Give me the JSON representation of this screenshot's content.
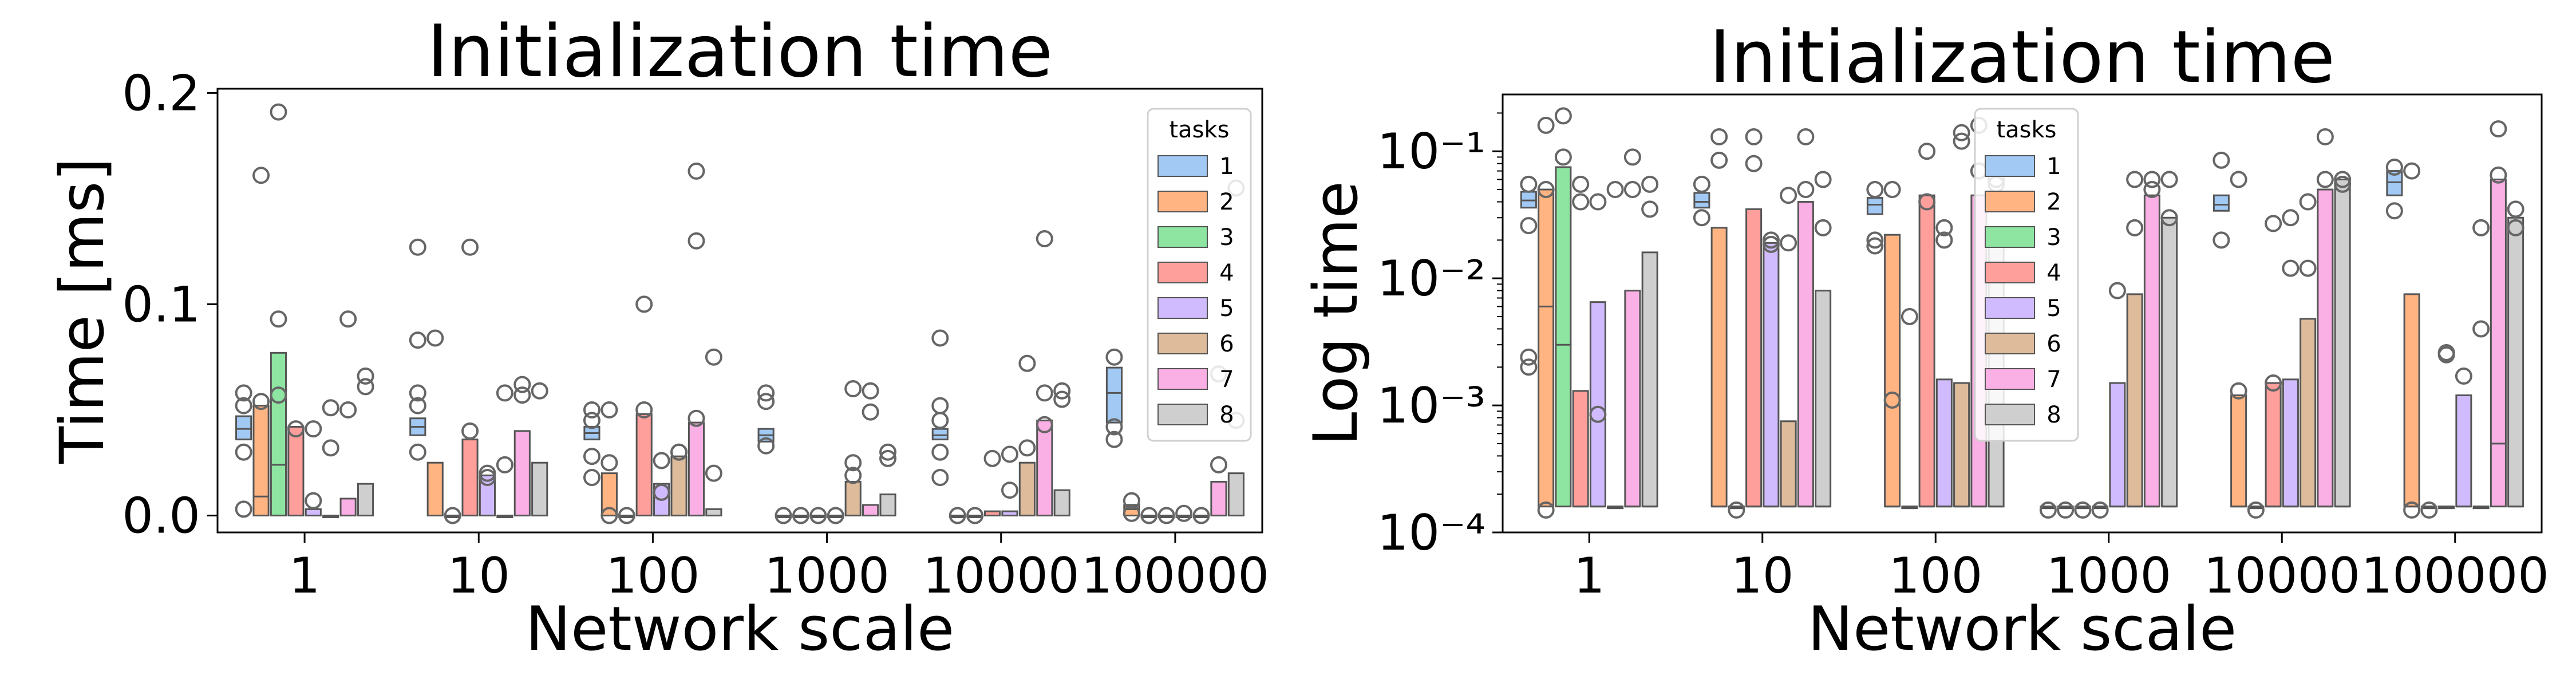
{
  "chart_data": [
    {
      "type": "boxen",
      "title": "Initialization time",
      "xlabel": "Network scale",
      "ylabel": "Time [ms]",
      "yscale": "linear",
      "ylim": [
        -0.008,
        0.202
      ],
      "yticks": [
        0.0,
        0.1,
        0.2
      ],
      "ytick_labels": [
        "0.0",
        "0.1",
        "0.2"
      ],
      "categories": [
        "1",
        "10",
        "100",
        "1000",
        "10000",
        "100000"
      ],
      "legend": {
        "title": "tasks",
        "placement": "top-right",
        "entries": [
          "1",
          "2",
          "3",
          "4",
          "5",
          "6",
          "7",
          "8"
        ]
      },
      "series": [
        {
          "name": "1",
          "color": "#a1c9f4",
          "boxes": [
            [
              0.036,
              0.047
            ],
            [
              0.038,
              0.046
            ],
            [
              0.036,
              0.042
            ],
            [
              0.035,
              0.041
            ],
            [
              0.036,
              0.041
            ],
            [
              0.044,
              0.07
            ]
          ],
          "medians": [
            0.041,
            0.042,
            0.039,
            0.038,
            0.038,
            0.058
          ],
          "fliers": [
            [
              0.058,
              0.052,
              0.03,
              0.003
            ],
            [
              0.058,
              0.052,
              0.083,
              0.127,
              0.03
            ],
            [
              0.05,
              0.045,
              0.028,
              0.018
            ],
            [
              0.058,
              0.054,
              0.033
            ],
            [
              0.052,
              0.045,
              0.018,
              0.03,
              0.084
            ],
            [
              0.075,
              0.042,
              0.036
            ]
          ]
        },
        {
          "name": "2",
          "color": "#ffb482",
          "boxes": [
            [
              0.0,
              0.052
            ],
            [
              0.0,
              0.025
            ],
            [
              0.0,
              0.02
            ],
            [
              0.0,
              0.0
            ],
            [
              0.0,
              0.0
            ],
            [
              0.0,
              0.005
            ]
          ],
          "medians": [
            0.009,
            0.0,
            0.0,
            0.0,
            0.0,
            0.003
          ],
          "fliers": [
            [
              0.161,
              0.054
            ],
            [
              0.084
            ],
            [
              0.05,
              0.025,
              0.0
            ],
            [
              0.0
            ],
            [
              0.0
            ],
            [
              0.007,
              0.001
            ]
          ]
        },
        {
          "name": "3",
          "color": "#8de5a1",
          "boxes": [
            [
              0.0,
              0.077
            ],
            [
              0.0,
              0.0
            ],
            [
              0.0,
              0.0
            ],
            [
              0.0,
              0.0
            ],
            [
              0.0,
              0.0
            ],
            [
              0.0,
              0.0
            ]
          ],
          "medians": [
            0.024,
            0.0,
            0.0,
            0.0,
            0.0,
            0.0
          ],
          "fliers": [
            [
              0.191,
              0.093,
              0.057
            ],
            [
              0.0
            ],
            [
              0.0
            ],
            [
              0.0
            ],
            [
              0.0
            ],
            [
              0.0
            ]
          ]
        },
        {
          "name": "4",
          "color": "#ff9f9b",
          "boxes": [
            [
              0.0,
              0.042
            ],
            [
              0.0,
              0.036
            ],
            [
              0.0,
              0.048
            ],
            [
              0.0,
              0.0
            ],
            [
              0.0,
              0.002
            ],
            [
              0.0,
              0.0
            ]
          ],
          "medians": [
            0.0,
            0.0,
            0.0,
            0.0,
            0.0,
            0.0
          ],
          "fliers": [
            [
              0.041
            ],
            [
              0.127,
              0.04
            ],
            [
              0.1,
              0.05
            ],
            [
              0.0
            ],
            [
              0.027
            ],
            [
              0.0
            ]
          ]
        },
        {
          "name": "5",
          "color": "#d0bbff",
          "boxes": [
            [
              0.0,
              0.003
            ],
            [
              0.0,
              0.019
            ],
            [
              0.0,
              0.015
            ],
            [
              0.0,
              0.0
            ],
            [
              0.0,
              0.002
            ],
            [
              0.0,
              0.0
            ]
          ],
          "medians": [
            0.0,
            0.0,
            0.0,
            0.0,
            0.0,
            0.0
          ],
          "fliers": [
            [
              0.007,
              0.041
            ],
            [
              0.02,
              0.018
            ],
            [
              0.026,
              0.011
            ],
            [
              0.0
            ],
            [
              0.029,
              0.012
            ],
            [
              0.001
            ]
          ]
        },
        {
          "name": "6",
          "color": "#debb9b",
          "boxes": [
            [
              0.0,
              0.0
            ],
            [
              0.0,
              0.0
            ],
            [
              0.0,
              0.028
            ],
            [
              0.0,
              0.016
            ],
            [
              0.0,
              0.025
            ],
            [
              0.0,
              0.0
            ]
          ],
          "medians": [
            0.0,
            0.0,
            0.0,
            0.0,
            0.0,
            0.0
          ],
          "fliers": [
            [
              0.051,
              0.032
            ],
            [
              0.058,
              0.024
            ],
            [
              0.03,
              0.03
            ],
            [
              0.019,
              0.06,
              0.025
            ],
            [
              0.072,
              0.032
            ],
            [
              0.0
            ]
          ]
        },
        {
          "name": "7",
          "color": "#fab0e4",
          "boxes": [
            [
              0.0,
              0.008
            ],
            [
              0.0,
              0.04
            ],
            [
              0.0,
              0.044
            ],
            [
              0.0,
              0.005
            ],
            [
              0.0,
              0.045
            ],
            [
              0.0,
              0.016
            ]
          ],
          "medians": [
            0.0,
            0.0,
            0.0,
            0.0,
            0.0,
            0.0
          ],
          "fliers": [
            [
              0.05,
              0.093
            ],
            [
              0.062,
              0.057
            ],
            [
              0.163,
              0.13,
              0.046
            ],
            [
              0.059,
              0.049
            ],
            [
              0.131,
              0.058,
              0.043
            ],
            [
              0.067,
              0.024
            ]
          ]
        },
        {
          "name": "8",
          "color": "#cfcfcf",
          "boxes": [
            [
              0.0,
              0.015
            ],
            [
              0.0,
              0.025
            ],
            [
              0.0,
              0.003
            ],
            [
              0.0,
              0.01
            ],
            [
              0.0,
              0.012
            ],
            [
              0.0,
              0.02
            ]
          ],
          "medians": [
            0.0,
            0.0,
            0.0,
            0.0,
            0.0,
            0.0
          ],
          "fliers": [
            [
              0.066,
              0.061
            ],
            [
              0.059
            ],
            [
              0.075,
              0.02
            ],
            [
              0.03,
              0.027
            ],
            [
              0.059,
              0.055
            ],
            [
              0.155,
              0.045
            ]
          ]
        }
      ]
    },
    {
      "type": "boxen",
      "title": "Initialization time",
      "xlabel": "Network scale",
      "ylabel": "Log time",
      "yscale": "log",
      "ylim": [
        0.0001,
        0.28
      ],
      "yticks": [
        0.0001,
        0.001,
        0.01,
        0.1
      ],
      "ytick_labels": [
        "10⁻⁴",
        "10⁻³",
        "10⁻²",
        "10⁻¹"
      ],
      "categories": [
        "1",
        "10",
        "100",
        "1000",
        "10000",
        "100000"
      ],
      "legend": {
        "title": "tasks",
        "placement": "upper center",
        "entries": [
          "1",
          "2",
          "3",
          "4",
          "5",
          "6",
          "7",
          "8"
        ]
      },
      "series": [
        {
          "name": "1",
          "color": "#a1c9f4",
          "boxes": [
            [
              0.036,
              0.048
            ],
            [
              0.036,
              0.047
            ],
            [
              0.032,
              0.043
            ],
            [
              0.00016,
              0.00016
            ],
            [
              0.034,
              0.045
            ],
            [
              0.045,
              0.07
            ]
          ],
          "medians": [
            0.041,
            0.04,
            0.038,
            0.00016,
            0.038,
            0.057
          ],
          "fliers": [
            [
              0.055,
              0.026,
              0.0024,
              0.002
            ],
            [
              0.055,
              0.03
            ],
            [
              0.05,
              0.02,
              0.018
            ],
            [
              0.00015
            ],
            [
              0.085,
              0.02
            ],
            [
              0.075,
              0.034
            ]
          ]
        },
        {
          "name": "2",
          "color": "#ffb482",
          "boxes": [
            [
              0.00016,
              0.05
            ],
            [
              0.00016,
              0.025
            ],
            [
              0.00016,
              0.022
            ],
            [
              0.00016,
              0.00016
            ],
            [
              0.00016,
              0.0012
            ],
            [
              0.00016,
              0.0075
            ]
          ],
          "medians": [
            0.006,
            0.00016,
            0.00016,
            0.00016,
            0.00016,
            0.00016
          ],
          "fliers": [
            [
              0.16,
              0.05,
              0.00015
            ],
            [
              0.13,
              0.085
            ],
            [
              0.05,
              0.0011
            ],
            [
              0.00015
            ],
            [
              0.06,
              0.0013
            ],
            [
              0.07,
              0.00015
            ]
          ]
        },
        {
          "name": "3",
          "color": "#8de5a1",
          "boxes": [
            [
              0.00016,
              0.075
            ],
            [
              0.00016,
              0.00016
            ],
            [
              0.00016,
              0.00016
            ],
            [
              0.00016,
              0.00016
            ],
            [
              0.00016,
              0.00016
            ],
            [
              0.00016,
              0.00016
            ]
          ],
          "medians": [
            0.003,
            0.00016,
            0.00016,
            0.00016,
            0.00016,
            0.00016
          ],
          "fliers": [
            [
              0.19,
              0.09
            ],
            [
              0.00015
            ],
            [
              0.005
            ],
            [
              0.00015
            ],
            [
              0.00015
            ],
            [
              0.00015
            ]
          ]
        },
        {
          "name": "4",
          "color": "#ff9f9b",
          "boxes": [
            [
              0.00016,
              0.0013
            ],
            [
              0.00016,
              0.035
            ],
            [
              0.00016,
              0.045
            ],
            [
              0.00016,
              0.00016
            ],
            [
              0.00016,
              0.0015
            ],
            [
              0.00016,
              0.00016
            ]
          ],
          "medians": [
            0.00016,
            0.00016,
            0.00016,
            0.00016,
            0.00016,
            0.00016
          ],
          "fliers": [
            [
              0.055,
              0.04
            ],
            [
              0.13,
              0.08
            ],
            [
              0.1,
              0.04
            ],
            [
              0.00015
            ],
            [
              0.027,
              0.0015
            ],
            [
              0.0026,
              0.0025
            ]
          ]
        },
        {
          "name": "5",
          "color": "#d0bbff",
          "boxes": [
            [
              0.00016,
              0.0065
            ],
            [
              0.00016,
              0.019
            ],
            [
              0.00016,
              0.0016
            ],
            [
              0.00016,
              0.0015
            ],
            [
              0.00016,
              0.0016
            ],
            [
              0.00016,
              0.0012
            ]
          ],
          "medians": [
            0.00016,
            0.00016,
            0.00016,
            0.00016,
            0.00016,
            0.00016
          ],
          "fliers": [
            [
              0.04,
              0.00085
            ],
            [
              0.02,
              0.0185
            ],
            [
              0.025,
              0.02
            ],
            [
              0.008
            ],
            [
              0.03,
              0.012
            ],
            [
              0.0017
            ]
          ]
        },
        {
          "name": "6",
          "color": "#debb9b",
          "boxes": [
            [
              0.00016,
              0.00016
            ],
            [
              0.00016,
              0.00075
            ],
            [
              0.00016,
              0.0015
            ],
            [
              0.00016,
              0.0075
            ],
            [
              0.00016,
              0.0048
            ],
            [
              0.00016,
              0.00016
            ]
          ],
          "medians": [
            0.00016,
            0.00016,
            0.00016,
            0.00016,
            0.00016,
            0.00016
          ],
          "fliers": [
            [
              0.05
            ],
            [
              0.045,
              0.019
            ],
            [
              0.14,
              0.12
            ],
            [
              0.06,
              0.025
            ],
            [
              0.04,
              0.012
            ],
            [
              0.025,
              0.004
            ]
          ]
        },
        {
          "name": "7",
          "color": "#fab0e4",
          "boxes": [
            [
              0.00016,
              0.008
            ],
            [
              0.00016,
              0.04
            ],
            [
              0.00016,
              0.045
            ],
            [
              0.00016,
              0.045
            ],
            [
              0.00016,
              0.05
            ],
            [
              0.00016,
              0.06
            ]
          ],
          "medians": [
            0.00016,
            0.00016,
            0.00016,
            0.00016,
            0.00016,
            0.0005
          ],
          "fliers": [
            [
              0.09,
              0.05
            ],
            [
              0.13,
              0.05
            ],
            [
              0.16,
              0.07
            ],
            [
              0.06,
              0.05
            ],
            [
              0.13,
              0.06
            ],
            [
              0.15,
              0.065
            ]
          ]
        },
        {
          "name": "8",
          "color": "#cfcfcf",
          "boxes": [
            [
              0.00016,
              0.016
            ],
            [
              0.00016,
              0.008
            ],
            [
              0.00016,
              0.02
            ],
            [
              0.00016,
              0.03
            ],
            [
              0.00016,
              0.06
            ],
            [
              0.00016,
              0.03
            ]
          ],
          "medians": [
            0.00016,
            0.00016,
            0.00016,
            0.00016,
            0.00016,
            0.00016
          ],
          "fliers": [
            [
              0.035,
              0.055
            ],
            [
              0.025,
              0.06
            ],
            [
              0.06,
              0.055
            ],
            [
              0.03,
              0.06
            ],
            [
              0.055,
              0.06
            ],
            [
              0.035,
              0.025
            ]
          ]
        }
      ]
    }
  ]
}
